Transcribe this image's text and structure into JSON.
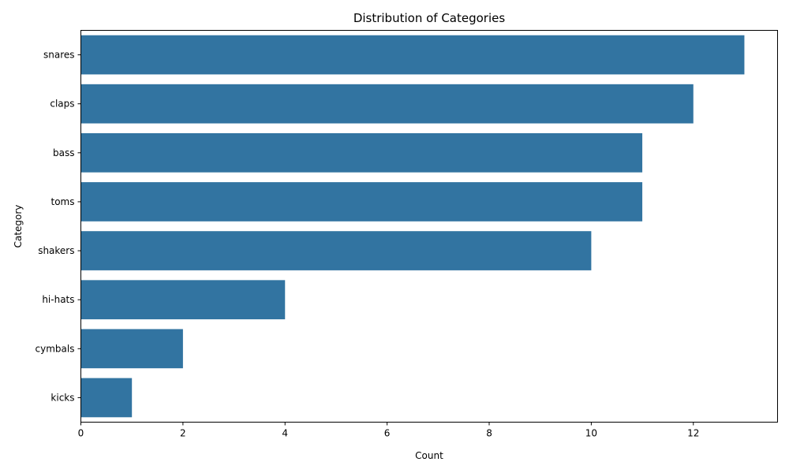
{
  "chart_data": {
    "type": "bar",
    "orientation": "horizontal",
    "title": "Distribution of Categories",
    "xlabel": "Count",
    "ylabel": "Category",
    "categories": [
      "snares",
      "claps",
      "bass",
      "toms",
      "shakers",
      "hi-hats",
      "cymbals",
      "kicks"
    ],
    "values": [
      13,
      12,
      11,
      11,
      10,
      4,
      2,
      1
    ],
    "xlim": [
      0,
      13.65
    ],
    "xticks": [
      0,
      2,
      4,
      6,
      8,
      10,
      12
    ],
    "bar_color": "#3274a1",
    "grid": false
  }
}
